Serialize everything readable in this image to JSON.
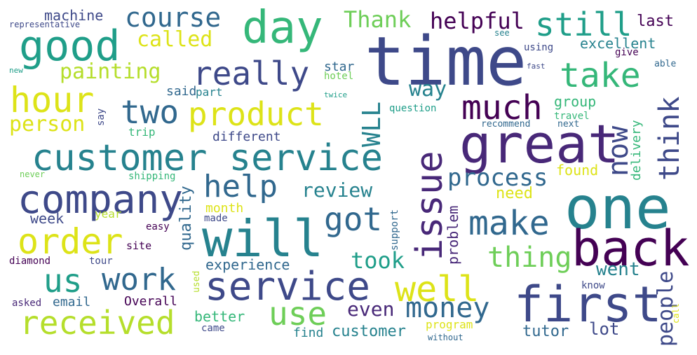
{
  "palette": {
    "background": "#ffffff",
    "dark_purple": "#440154",
    "purple": "#482878",
    "indigo": "#3e4989",
    "blue": "#31688e",
    "teal_blue": "#26828e",
    "teal": "#1f9e89",
    "green": "#35b779",
    "light_green": "#6ece58",
    "lime": "#b5de2b",
    "yellow": "#dde318"
  },
  "words": [
    {
      "text": "time",
      "color": "#3e4989"
    },
    {
      "text": "one",
      "color": "#26828e"
    },
    {
      "text": "great",
      "color": "#482878"
    },
    {
      "text": "customer service",
      "color": "#26828e"
    },
    {
      "text": "service",
      "color": "#3e4989"
    },
    {
      "text": "back",
      "color": "#440154"
    },
    {
      "text": "first",
      "color": "#3e4989"
    },
    {
      "text": "will",
      "color": "#26828e"
    },
    {
      "text": "good",
      "color": "#1f9e89"
    },
    {
      "text": "company",
      "color": "#3e4989"
    },
    {
      "text": "day",
      "color": "#35b779"
    },
    {
      "text": "issue",
      "color": "#482878"
    },
    {
      "text": "order",
      "color": "#dde318"
    },
    {
      "text": "received",
      "color": "#b5de2b"
    },
    {
      "text": "well",
      "color": "#dde318"
    },
    {
      "text": "product",
      "color": "#dde318"
    },
    {
      "text": "hour",
      "color": "#dde318"
    },
    {
      "text": "really",
      "color": "#3e4989"
    },
    {
      "text": "take",
      "color": "#35b779"
    },
    {
      "text": "us",
      "color": "#1f9e89"
    },
    {
      "text": "work",
      "color": "#31688e"
    },
    {
      "text": "use",
      "color": "#6ece58"
    },
    {
      "text": "money",
      "color": "#31688e"
    },
    {
      "text": "two",
      "color": "#31688e"
    },
    {
      "text": "much",
      "color": "#440154"
    },
    {
      "text": "got",
      "color": "#31688e"
    },
    {
      "text": "help",
      "color": "#31688e"
    },
    {
      "text": "make",
      "color": "#31688e"
    },
    {
      "text": "still",
      "color": "#1f9e89"
    },
    {
      "text": "think",
      "color": "#3e4989"
    },
    {
      "text": "now",
      "color": "#3e4989"
    },
    {
      "text": "course",
      "color": "#31688e"
    },
    {
      "text": "thing",
      "color": "#6ece58"
    },
    {
      "text": "WLL",
      "color": "#26828e"
    },
    {
      "text": "process",
      "color": "#31688e"
    },
    {
      "text": "helpful",
      "color": "#440154"
    },
    {
      "text": "Thank",
      "color": "#6ece58"
    },
    {
      "text": "took",
      "color": "#1f9e89"
    },
    {
      "text": "people",
      "color": "#3e4989"
    },
    {
      "text": "called",
      "color": "#dde318"
    },
    {
      "text": "painting",
      "color": "#b5de2b"
    },
    {
      "text": "person",
      "color": "#dde318"
    },
    {
      "text": "review",
      "color": "#26828e"
    },
    {
      "text": "excellent",
      "color": "#26828e"
    },
    {
      "text": "way",
      "color": "#26828e"
    },
    {
      "text": "went",
      "color": "#26828e"
    },
    {
      "text": "even",
      "color": "#482878"
    },
    {
      "text": "customer",
      "color": "#26828e"
    },
    {
      "text": "machine",
      "color": "#3e4989"
    },
    {
      "text": "last",
      "color": "#440154"
    },
    {
      "text": "group",
      "color": "#35b779"
    },
    {
      "text": "experience",
      "color": "#31688e"
    },
    {
      "text": "quality",
      "color": "#31688e"
    },
    {
      "text": "delivery",
      "color": "#35b779"
    },
    {
      "text": "found",
      "color": "#dde318"
    },
    {
      "text": "need",
      "color": "#dde318"
    },
    {
      "text": "week",
      "color": "#3e4989"
    },
    {
      "text": "email",
      "color": "#31688e"
    },
    {
      "text": "Overall",
      "color": "#440154"
    },
    {
      "text": "better",
      "color": "#35b779"
    },
    {
      "text": "different",
      "color": "#3e4989"
    },
    {
      "text": "month",
      "color": "#dde318"
    },
    {
      "text": "problem",
      "color": "#482878"
    },
    {
      "text": "tutor",
      "color": "#31688e"
    },
    {
      "text": "lot",
      "color": "#3e4989"
    },
    {
      "text": "program",
      "color": "#dde318"
    },
    {
      "text": "find",
      "color": "#26828e"
    },
    {
      "text": "trip",
      "color": "#35b779"
    },
    {
      "text": "star",
      "color": "#31688e"
    },
    {
      "text": "said",
      "color": "#31688e"
    },
    {
      "text": "part",
      "color": "#26828e"
    },
    {
      "text": "hotel",
      "color": "#6ece58"
    },
    {
      "text": "question",
      "color": "#1f9e89"
    },
    {
      "text": "travel",
      "color": "#35b779"
    },
    {
      "text": "recommend",
      "color": "#31688e"
    },
    {
      "text": "next",
      "color": "#31688e"
    },
    {
      "text": "using",
      "color": "#3e4989"
    },
    {
      "text": "give",
      "color": "#440154"
    },
    {
      "text": "able",
      "color": "#31688e"
    },
    {
      "text": "see",
      "color": "#26828e"
    },
    {
      "text": "fast",
      "color": "#3e4989"
    },
    {
      "text": "twice",
      "color": "#1f9e89"
    },
    {
      "text": "representative",
      "color": "#3e4989"
    },
    {
      "text": "new",
      "color": "#1f9e89"
    },
    {
      "text": "say",
      "color": "#3e4989"
    },
    {
      "text": "never",
      "color": "#6ece58"
    },
    {
      "text": "shipping",
      "color": "#35b779"
    },
    {
      "text": "year",
      "color": "#b5de2b"
    },
    {
      "text": "easy",
      "color": "#440154"
    },
    {
      "text": "made",
      "color": "#3e4989"
    },
    {
      "text": "site",
      "color": "#440154"
    },
    {
      "text": "diamond",
      "color": "#440154"
    },
    {
      "text": "tour",
      "color": "#3e4989"
    },
    {
      "text": "asked",
      "color": "#482878"
    },
    {
      "text": "came",
      "color": "#3e4989"
    },
    {
      "text": "used",
      "color": "#b5de2b"
    },
    {
      "text": "support",
      "color": "#31688e"
    },
    {
      "text": "know",
      "color": "#3e4989"
    },
    {
      "text": "without",
      "color": "#31688e"
    },
    {
      "text": "call",
      "color": "#dde318"
    }
  ]
}
